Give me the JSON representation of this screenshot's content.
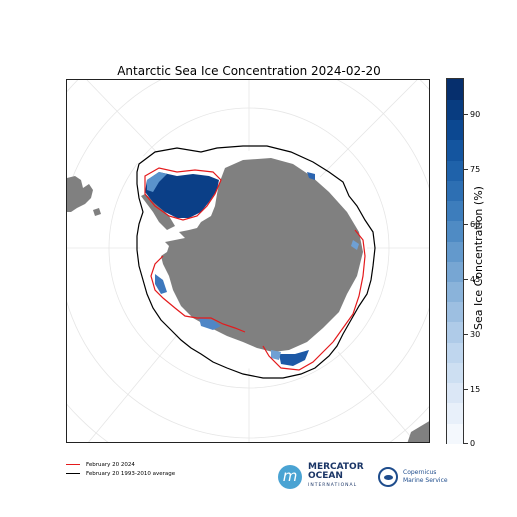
{
  "title": "Antarctic Sea Ice Concentration 2024-02-20",
  "colorbar": {
    "label": "Sea Ice Concentration (%)",
    "ticks": [
      "0",
      "15",
      "30",
      "45",
      "60",
      "75",
      "90"
    ],
    "min": 0,
    "max": 100,
    "colors": [
      "#f4f8fd",
      "#e8f0fa",
      "#dbe7f6",
      "#cddff2",
      "#bfd6ee",
      "#afcbe8",
      "#9dbfe1",
      "#8ab3da",
      "#77a6d3",
      "#6399cc",
      "#4f8bc4",
      "#3d7dbc",
      "#2d6fb3",
      "#1f62aa",
      "#14559f",
      "#0c4891",
      "#083c80",
      "#062f6d"
    ]
  },
  "legend": {
    "items": [
      {
        "label": "February 20 2024",
        "color": "#e41a1c"
      },
      {
        "label": "February 20 1993-2010 average",
        "color": "#000000"
      }
    ]
  },
  "logos": {
    "mercator_line1": "MERCATOR",
    "mercator_line2": "OCEAN",
    "mercator_line3": "INTERNATIONAL",
    "copernicus_line1": "Copernicus",
    "copernicus_line2": "Marine Service"
  },
  "map_colors": {
    "land": "#808080",
    "ocean": "#ffffff",
    "ice_high": "#08306b",
    "ice_mid": "#2b6cb0",
    "ice_low": "#9ecae1",
    "edge_2024": "#e41a1c",
    "edge_average": "#000000"
  }
}
